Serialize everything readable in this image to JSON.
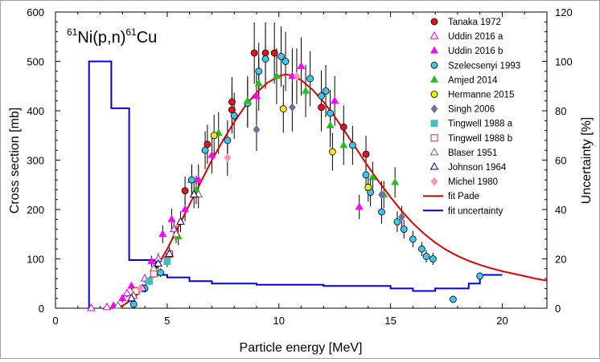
{
  "chart_data": {
    "type": "scatter",
    "title": {
      "pre_sup": "61",
      "mid": "Ni(p,n)",
      "post_sup": "61",
      "end": "Cu"
    },
    "xlabel": "Particle energy [MeV]",
    "ylabel": "Cross section [mb]",
    "y2label": "Uncertainty [%]",
    "xlim": [
      0,
      22
    ],
    "ylim": [
      0,
      600
    ],
    "y2lim": [
      0,
      120
    ],
    "x_ticks": [
      "0",
      "5",
      "10",
      "15",
      "20"
    ],
    "y_ticks": [
      "0",
      "100",
      "200",
      "300",
      "400",
      "500",
      "600"
    ],
    "y2_ticks": [
      "0",
      "20",
      "40",
      "60",
      "80",
      "100",
      "120"
    ],
    "grid": false,
    "legend_position": "top-right",
    "series": [
      {
        "name": "Tanaka 1972",
        "marker": "circle",
        "color": "#e8101a",
        "filled": true,
        "points": [
          [
            5.8,
            238
          ],
          [
            6.8,
            332
          ],
          [
            7.9,
            418
          ],
          [
            7.9,
            402
          ],
          [
            8.9,
            517
          ],
          [
            9.4,
            517
          ],
          [
            9.8,
            517
          ],
          [
            11.9,
            407
          ],
          [
            12.9,
            367
          ],
          [
            13.9,
            312
          ]
        ]
      },
      {
        "name": "Uddin 2016 a",
        "marker": "triangle",
        "color": "#e000e0",
        "filled": false,
        "points": [
          [
            1.6,
            0
          ],
          [
            2.3,
            2
          ],
          [
            3.2,
            30
          ],
          [
            4.0,
            60
          ],
          [
            4.6,
            100
          ],
          [
            5.3,
            160
          ],
          [
            6.1,
            260
          ]
        ]
      },
      {
        "name": "Uddin 2016 b",
        "marker": "triangle",
        "color": "#ff00ff",
        "filled": true,
        "points": [
          [
            2.6,
            5
          ],
          [
            3.0,
            20
          ],
          [
            3.4,
            45
          ],
          [
            4.3,
            95
          ],
          [
            4.8,
            150
          ],
          [
            5.2,
            180
          ],
          [
            5.8,
            200
          ],
          [
            6.4,
            260
          ],
          [
            7.0,
            310
          ],
          [
            9.0,
            430
          ],
          [
            10.6,
            470
          ],
          [
            11.0,
            490
          ],
          [
            12.5,
            420
          ],
          [
            13.6,
            205
          ]
        ]
      },
      {
        "name": "Szelecsenyi 1993",
        "marker": "circle",
        "color": "#38c8f0",
        "filled": true,
        "points": [
          [
            3.5,
            8
          ],
          [
            4.0,
            40
          ],
          [
            4.7,
            72
          ],
          [
            5.0,
            100
          ],
          [
            6.1,
            260
          ],
          [
            6.7,
            320
          ],
          [
            7.7,
            340
          ],
          [
            8.0,
            390
          ],
          [
            8.6,
            415
          ],
          [
            9.1,
            480
          ],
          [
            9.4,
            505
          ],
          [
            10.1,
            510
          ],
          [
            10.3,
            500
          ],
          [
            11.4,
            465
          ],
          [
            11.9,
            430
          ],
          [
            12.1,
            440
          ],
          [
            12.3,
            395
          ],
          [
            13.3,
            330
          ],
          [
            13.9,
            270
          ],
          [
            14.1,
            235
          ],
          [
            14.6,
            195
          ],
          [
            15.3,
            175
          ],
          [
            15.6,
            160
          ],
          [
            16.0,
            140
          ],
          [
            16.4,
            120
          ],
          [
            16.6,
            105
          ],
          [
            16.9,
            100
          ],
          [
            17.8,
            18
          ],
          [
            19.0,
            65
          ]
        ]
      },
      {
        "name": "Amjed 2014",
        "marker": "triangle",
        "color": "#20c020",
        "filled": true,
        "points": [
          [
            5.5,
            145
          ],
          [
            6.3,
            240
          ],
          [
            7.3,
            355
          ],
          [
            8.6,
            420
          ],
          [
            9.1,
            455
          ],
          [
            9.9,
            470
          ],
          [
            11.2,
            440
          ],
          [
            12.3,
            370
          ],
          [
            12.9,
            330
          ],
          [
            14.2,
            265
          ],
          [
            14.7,
            230
          ],
          [
            15.2,
            255
          ]
        ]
      },
      {
        "name": "Hermanne 2015",
        "marker": "circle",
        "color": "#f0f000",
        "filled": true,
        "points": [
          [
            7.1,
            350
          ],
          [
            10.2,
            404
          ],
          [
            12.4,
            317
          ],
          [
            14.0,
            245
          ]
        ]
      },
      {
        "name": "Singh 2006",
        "marker": "diamond",
        "color": "#7070a0",
        "filled": true,
        "points": [
          [
            9.0,
            362
          ],
          [
            10.6,
            407
          ],
          [
            14.6,
            230
          ],
          [
            15.5,
            185
          ]
        ]
      },
      {
        "name": "Tingwell 1988 a",
        "marker": "square",
        "color": "#40c0c0",
        "filled": true,
        "points": [
          [
            4.2,
            55
          ],
          [
            5.0,
            95
          ]
        ]
      },
      {
        "name": "Tingwell 1988 b",
        "marker": "square",
        "color": "#e02020",
        "filled": false,
        "points": [
          [
            3.6,
            35
          ],
          [
            4.4,
            70
          ],
          [
            5.1,
            110
          ]
        ]
      },
      {
        "name": "Blaser 1951",
        "marker": "triangle",
        "color": "#806040",
        "filled": false,
        "points": [
          [
            2.8,
            5
          ],
          [
            3.5,
            25
          ],
          [
            4.4,
            80
          ],
          [
            5.4,
            150
          ],
          [
            6.4,
            230
          ]
        ]
      },
      {
        "name": "Johnson 1964",
        "marker": "triangle",
        "color": "#000080",
        "filled": false,
        "points": [
          [
            3.4,
            20
          ],
          [
            3.9,
            40
          ],
          [
            4.6,
            90
          ],
          [
            5.1,
            110
          ],
          [
            5.6,
            175
          ],
          [
            6.2,
            230
          ]
        ]
      },
      {
        "name": "Michel 1980",
        "marker": "diamond",
        "color": "#ff90c0",
        "filled": true,
        "points": [
          [
            3.8,
            40
          ],
          [
            7.7,
            305
          ],
          [
            10.8,
            470
          ]
        ]
      }
    ],
    "fit_lines": [
      {
        "name": "fit Pade",
        "color": "#e00000",
        "axis": "left",
        "points": [
          [
            2.5,
            0
          ],
          [
            3.0,
            5
          ],
          [
            3.5,
            20
          ],
          [
            4.0,
            45
          ],
          [
            4.5,
            80
          ],
          [
            5.0,
            120
          ],
          [
            5.5,
            165
          ],
          [
            6.0,
            210
          ],
          [
            6.5,
            255
          ],
          [
            7.0,
            300
          ],
          [
            7.5,
            340
          ],
          [
            8.0,
            377
          ],
          [
            8.5,
            410
          ],
          [
            9.0,
            437
          ],
          [
            9.5,
            457
          ],
          [
            10.0,
            470
          ],
          [
            10.3,
            474
          ],
          [
            10.6,
            471
          ],
          [
            11.0,
            462
          ],
          [
            11.5,
            443
          ],
          [
            12.0,
            418
          ],
          [
            12.5,
            388
          ],
          [
            13.0,
            355
          ],
          [
            13.5,
            321
          ],
          [
            14.0,
            287
          ],
          [
            14.5,
            255
          ],
          [
            15.0,
            225
          ],
          [
            15.5,
            197
          ],
          [
            16.0,
            172
          ],
          [
            16.5,
            151
          ],
          [
            17.0,
            133
          ],
          [
            17.5,
            118
          ],
          [
            18.0,
            106
          ],
          [
            18.5,
            96
          ],
          [
            19.0,
            88
          ],
          [
            19.5,
            81
          ],
          [
            20.0,
            75
          ],
          [
            20.5,
            70
          ],
          [
            21.0,
            65
          ],
          [
            21.5,
            60
          ],
          [
            22.0,
            56
          ]
        ]
      },
      {
        "name": "fit uncertainty",
        "color": "#0000e0",
        "axis": "right",
        "points": [
          [
            1.5,
            0
          ],
          [
            1.5,
            100
          ],
          [
            2.5,
            100
          ],
          [
            2.5,
            81
          ],
          [
            3.3,
            81
          ],
          [
            3.3,
            19.5
          ],
          [
            4.5,
            19.5
          ],
          [
            4.5,
            13.5
          ],
          [
            5.0,
            13.5
          ],
          [
            5.0,
            12.5
          ],
          [
            6.0,
            12.5
          ],
          [
            6.0,
            11
          ],
          [
            7.0,
            11
          ],
          [
            7.0,
            10
          ],
          [
            9.0,
            10
          ],
          [
            9.0,
            9.5
          ],
          [
            12.0,
            9.5
          ],
          [
            12.0,
            9
          ],
          [
            15.0,
            9
          ],
          [
            15.0,
            8
          ],
          [
            16.0,
            8
          ],
          [
            16.0,
            7
          ],
          [
            17.0,
            7
          ],
          [
            17.0,
            8
          ],
          [
            18.5,
            8
          ],
          [
            18.5,
            10
          ],
          [
            19.0,
            10
          ],
          [
            19.0,
            13.5
          ],
          [
            20.0,
            13.5
          ]
        ]
      }
    ]
  }
}
